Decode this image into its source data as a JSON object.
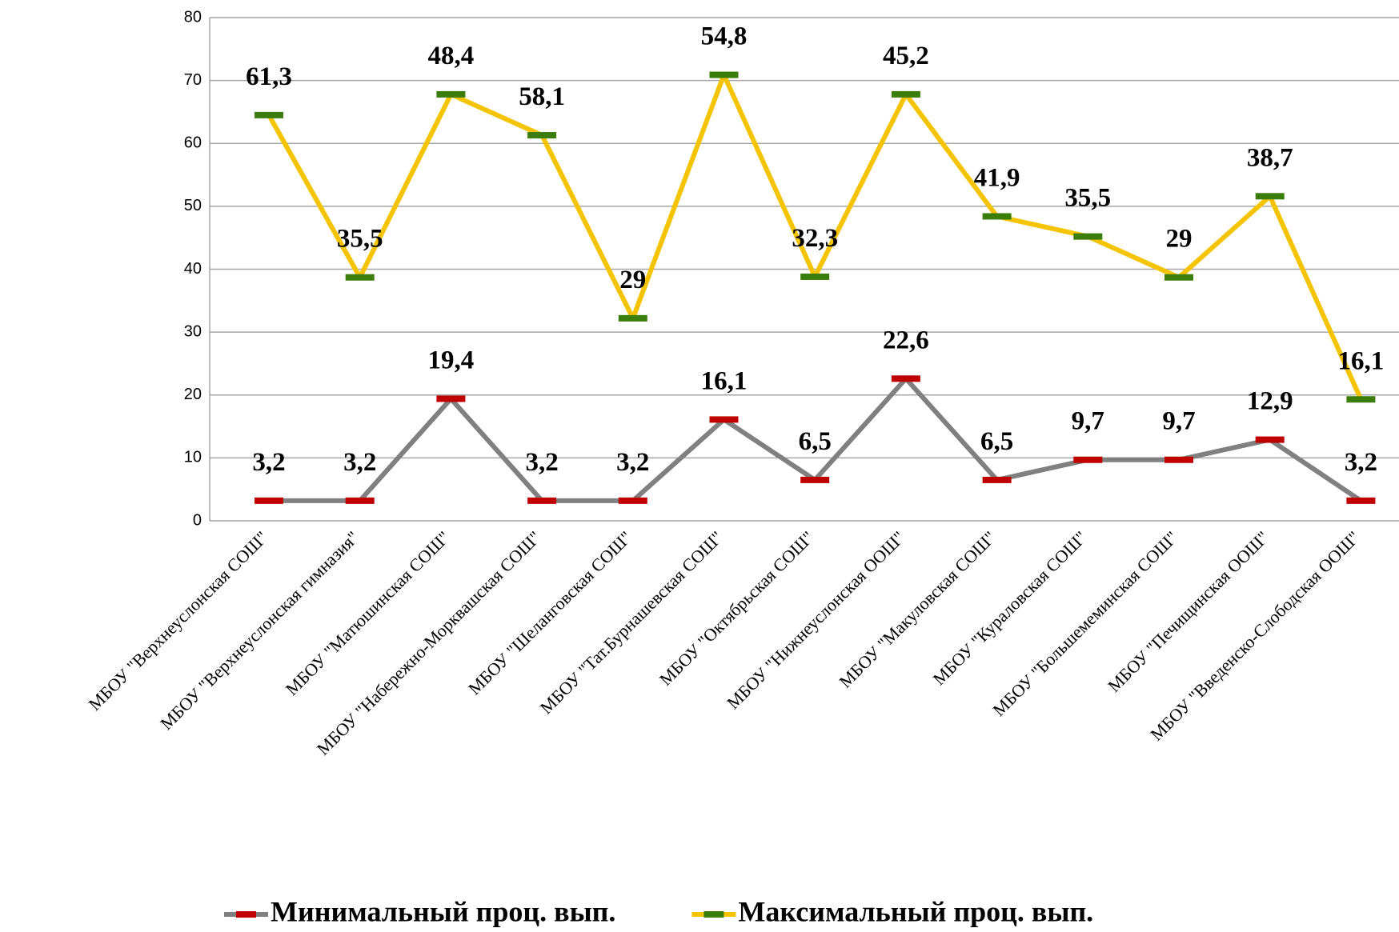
{
  "chart_data": {
    "type": "line",
    "stacked": true,
    "categories": [
      "МБОУ \"Верхнеуслонская СОШ\"",
      "МБОУ \"Верхнеуслонская гимназия\"",
      "МБОУ \"Матюшинская СОШ\"",
      "МБОУ \"Набережно-Морквашская СОШ\"",
      "МБОУ \"Шеланговская СОШ\"",
      "МБОУ \"Тат.Бурнашевская СОШ\"",
      "МБОУ \"Октябрьская СОШ\"",
      "МБОУ \"Нижнеуслонская ООШ\"",
      "МБОУ \"Макуловская СОШ\"",
      "МБОУ \"Кураловская СОШ\"",
      "МБОУ \"Большемеминская СОШ\"",
      "МБОУ \"Печищинская ООШ\"",
      "МБОУ \"Введенско-Слободская ООШ\""
    ],
    "series": [
      {
        "name": "Минимальный проц. вып.",
        "color": "#808080",
        "marker_color": "#c00000",
        "values": [
          3.2,
          3.2,
          19.4,
          3.2,
          3.2,
          16.1,
          6.5,
          22.6,
          6.5,
          9.7,
          9.7,
          12.9,
          3.2
        ],
        "value_labels": [
          "3,2",
          "3,2",
          "19,4",
          "3,2",
          "3,2",
          "16,1",
          "6,5",
          "22,6",
          "6,5",
          "9,7",
          "9,7",
          "12,9",
          "3,2"
        ]
      },
      {
        "name": "Максимальный проц. вып.",
        "color": "#f5c400",
        "marker_color": "#3a7d0a",
        "values": [
          61.3,
          35.5,
          48.4,
          58.1,
          29,
          54.8,
          32.3,
          45.2,
          41.9,
          35.5,
          29,
          38.7,
          16.1
        ],
        "value_labels": [
          "61,3",
          "35,5",
          "48,4",
          "58,1",
          "29",
          "54,8",
          "32,3",
          "45,2",
          "41,9",
          "35,5",
          "29",
          "38,7",
          "16,1"
        ]
      }
    ],
    "ylim": [
      0,
      80
    ],
    "yticks": [
      0,
      10,
      20,
      30,
      40,
      50,
      60,
      70,
      80
    ],
    "grid": true,
    "legend": "bottom"
  }
}
